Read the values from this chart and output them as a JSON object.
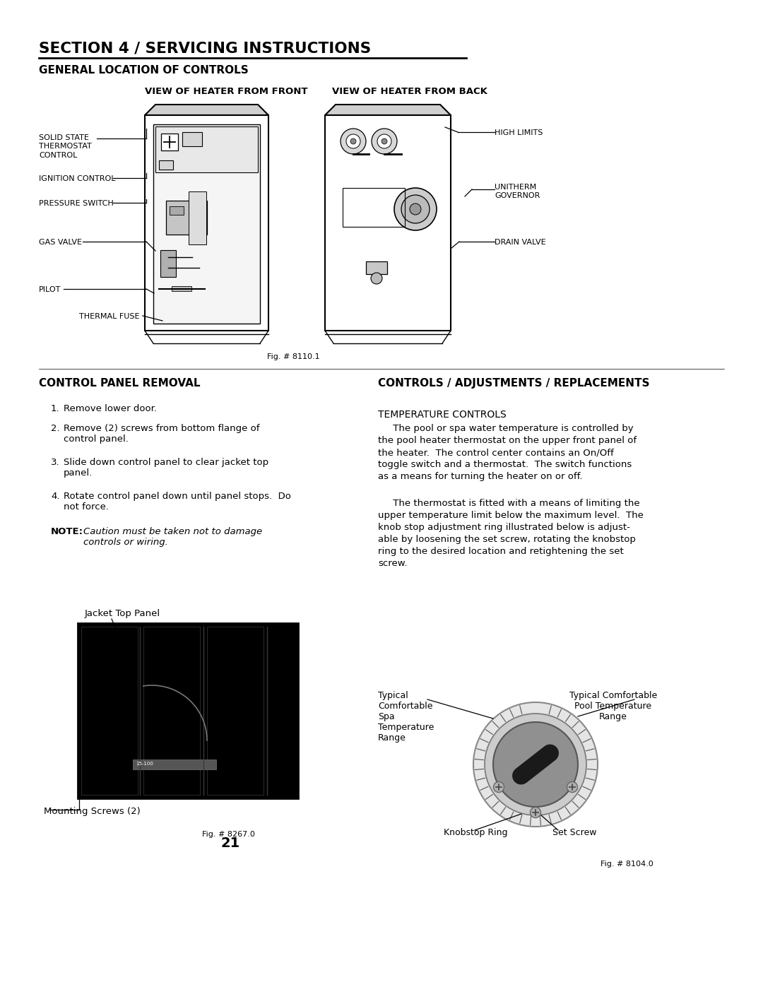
{
  "bg_color": "#ffffff",
  "title": "SECTION 4 / SERVICING INSTRUCTIONS",
  "subtitle": "GENERAL LOCATION OF CONTROLS",
  "front_view_label": "VIEW OF HEATER FROM FRONT",
  "back_view_label": "VIEW OF HEATER FROM BACK",
  "fig1_caption": "Fig. # 8110.1",
  "control_panel_title": "CONTROL PANEL REMOVAL",
  "steps": [
    "Remove lower door.",
    "Remove (2) screws from bottom flange of\ncontrol panel.",
    "Slide down control panel to clear jacket top\npanel.",
    "Rotate control panel down until panel stops.  Do\nnot force."
  ],
  "note_bold": "NOTE:",
  "note_italic": "Caution must be taken not to damage\ncontrols or wiring.",
  "jacket_top_label": "Jacket Top Panel",
  "mounting_screws_label": "Mounting Screws (2)",
  "fig2_caption": "Fig. # 8267.0",
  "page_num": "21",
  "controls_adj_title": "CONTROLS / ADJUSTMENTS / REPLACEMENTS",
  "temp_controls_heading": "TEMPERATURE CONTROLS",
  "para1_line1": "     The pool or spa water temperature is controlled by",
  "para1_line2": "the pool heater thermostat on the upper front panel of",
  "para1_line3": "the heater.  The control center contains an On/Off",
  "para1_line4": "toggle switch and a thermostat.  The switch functions",
  "para1_line5": "as a means for turning the heater on or off.",
  "para2_line1": "     The thermostat is fitted with a means of limiting the",
  "para2_line2": "upper temperature limit below the maximum level.  The",
  "para2_line3": "knob stop adjustment ring illustrated below is adjust-",
  "para2_line4": "able by loosening the set screw, rotating the knobstop",
  "para2_line5": "ring to the desired location and retightening the set",
  "para2_line6": "screw.",
  "spa_temp_label": "Typical\nComfortable\nSpa\nTemperature\nRange",
  "pool_temp_label": "Typical Comfortable\nPool Temperature\nRange",
  "knobstop_label": "Knobstop Ring",
  "setscrew_label": "Set Screw",
  "fig3_caption": "Fig. # 8104.0"
}
